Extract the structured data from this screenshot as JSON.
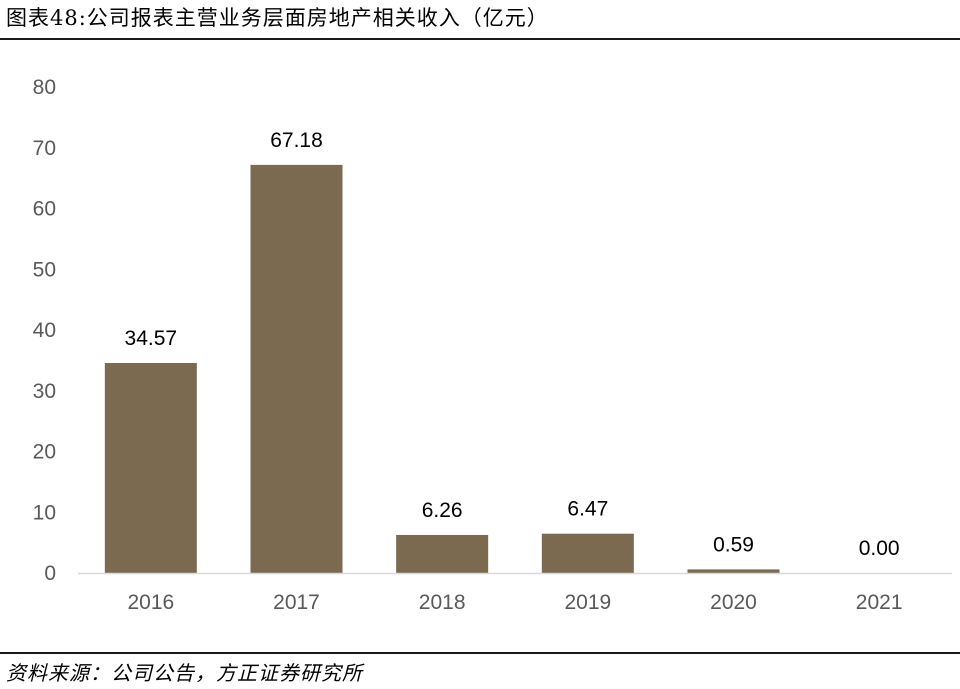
{
  "header": {
    "title": "图表48:公司报表主营业务层面房地产相关收入（亿元）"
  },
  "footer": {
    "source": "资料来源：公司公告，方正证券研究所"
  },
  "chart_data": {
    "type": "bar",
    "categories": [
      "2016",
      "2017",
      "2018",
      "2019",
      "2020",
      "2021"
    ],
    "values": [
      34.57,
      67.18,
      6.26,
      6.47,
      0.59,
      0.0
    ],
    "data_labels": [
      "34.57",
      "67.18",
      "6.26",
      "6.47",
      "0.59",
      "0.00"
    ],
    "y_ticks": [
      "0",
      "10",
      "20",
      "30",
      "40",
      "50",
      "60",
      "70",
      "80"
    ],
    "ylim": [
      0,
      80
    ],
    "grid": false,
    "legend": "none",
    "colors": {
      "bar": "#7b6a4f",
      "axis": "#d9d9d9"
    }
  }
}
